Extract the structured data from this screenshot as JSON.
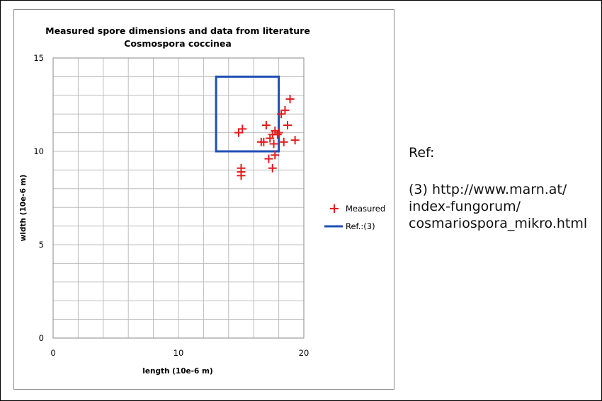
{
  "chart_data": {
    "type": "scatter",
    "title": "Measured spore dimensions and data from literature",
    "subtitle": "Cosmospora coccinea",
    "xlabel": "length (10e-6 m)",
    "ylabel": "width (10e-6 m)",
    "xlim": [
      0,
      20
    ],
    "ylim": [
      0,
      15
    ],
    "x_ticks": [
      "0",
      "10",
      "20"
    ],
    "y_ticks": [
      "0",
      "5",
      "10",
      "15"
    ],
    "grid": true,
    "legend_position": "right",
    "series": [
      {
        "name": "Measured",
        "type": "scatter",
        "marker": "plus",
        "color": "#e41a1c",
        "points": [
          [
            14.8,
            11.0
          ],
          [
            15.1,
            11.2
          ],
          [
            15.0,
            9.1
          ],
          [
            15.0,
            8.9
          ],
          [
            15.0,
            8.7
          ],
          [
            16.6,
            10.5
          ],
          [
            16.8,
            10.5
          ],
          [
            17.0,
            11.4
          ],
          [
            17.2,
            9.6
          ],
          [
            17.3,
            10.7
          ],
          [
            17.5,
            10.9
          ],
          [
            17.5,
            9.1
          ],
          [
            17.6,
            10.4
          ],
          [
            17.7,
            11.1
          ],
          [
            17.7,
            9.8
          ],
          [
            17.9,
            10.9
          ],
          [
            18.0,
            11.0
          ],
          [
            18.2,
            12.0
          ],
          [
            18.4,
            10.5
          ],
          [
            18.5,
            12.2
          ],
          [
            18.7,
            11.4
          ],
          [
            18.9,
            12.8
          ],
          [
            19.3,
            10.6
          ]
        ]
      },
      {
        "name": "Ref.:(3)",
        "type": "rectangle",
        "color": "#1f4fb4",
        "x_range": [
          13,
          18
        ],
        "y_range": [
          10,
          14
        ]
      }
    ]
  },
  "reference": {
    "heading": "Ref:",
    "lines": [
      "(3) http://www.marn.at/",
      "index-fungorum/",
      "cosmariospora_mikro.html"
    ]
  }
}
